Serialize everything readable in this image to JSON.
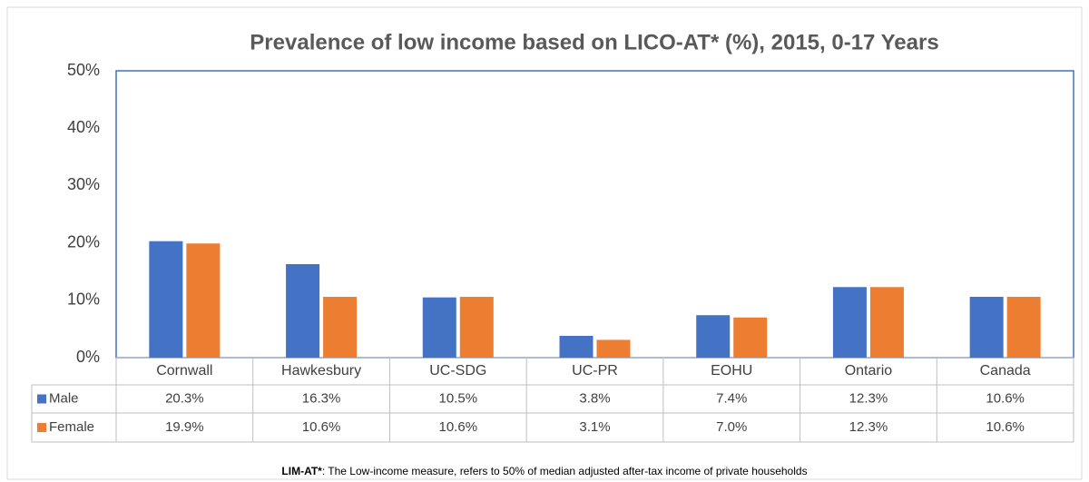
{
  "chart_data": {
    "type": "bar",
    "title": "Prevalence of low income based on LICO-AT* (%), 2015, 0-17 Years",
    "categories": [
      "Cornwall",
      "Hawkesbury",
      "UC-SDG",
      "UC-PR",
      "EOHU",
      "Ontario",
      "Canada"
    ],
    "series": [
      {
        "name": "Male",
        "color": "#4472c4",
        "values": [
          20.3,
          16.3,
          10.5,
          3.8,
          7.4,
          12.3,
          10.6
        ],
        "value_labels": [
          "20.3%",
          "16.3%",
          "10.5%",
          "3.8%",
          "7.4%",
          "12.3%",
          "10.6%"
        ]
      },
      {
        "name": "Female",
        "color": "#ed7d31",
        "values": [
          19.9,
          10.6,
          10.6,
          3.1,
          7.0,
          12.3,
          10.6
        ],
        "value_labels": [
          "19.9%",
          "10.6%",
          "10.6%",
          "3.1%",
          "7.0%",
          "12.3%",
          "10.6%"
        ]
      }
    ],
    "ylim": [
      0,
      50
    ],
    "yticks": [
      {
        "value": 0,
        "label": "0%"
      },
      {
        "value": 10,
        "label": "10%"
      },
      {
        "value": 20,
        "label": "20%"
      },
      {
        "value": 30,
        "label": "30%"
      },
      {
        "value": 40,
        "label": "40%"
      },
      {
        "value": 50,
        "label": "50%"
      }
    ],
    "grid": false,
    "footnote": {
      "term": "LIM-AT*",
      "text": ": The Low-income measure, refers to 50% of median adjusted after-tax income of private households"
    }
  }
}
